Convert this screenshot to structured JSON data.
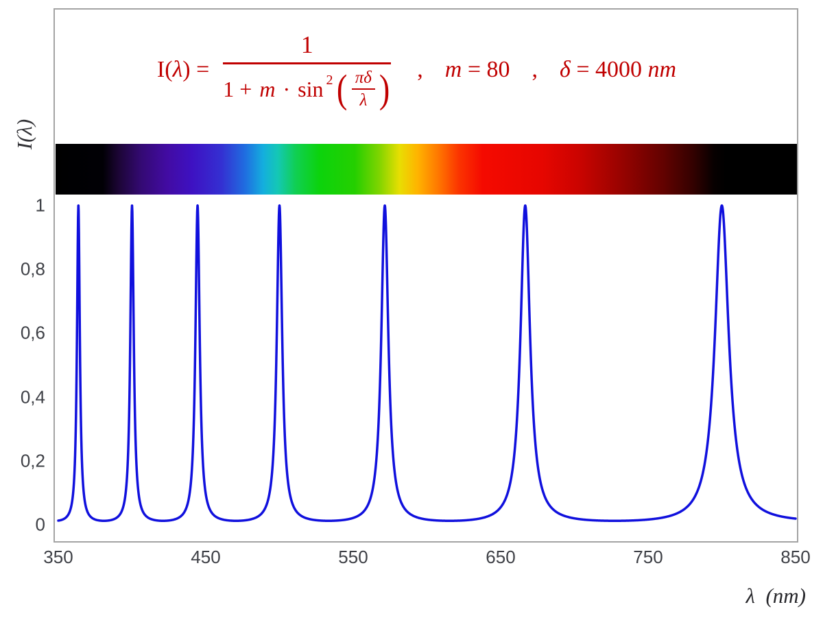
{
  "formula": {
    "lhs_pre": "I(",
    "lhs_lambda": "λ",
    "lhs_post": ") =",
    "numerator": "1",
    "den_one_plus": "1 + ",
    "den_m": "m",
    "den_dot": " · ",
    "den_sin": "sin",
    "den_exponent": "2",
    "paren_open": "(",
    "paren_close": ")",
    "inner_numerator": "πδ",
    "inner_denominator": "λ",
    "separator_comma": ",",
    "m_var": "m",
    "m_equals": " = ",
    "m_value": "80",
    "delta_var": "δ",
    "delta_equals": " = ",
    "delta_value": "4000 ",
    "delta_unit": "nm",
    "color": "#c00000"
  },
  "axes": {
    "y_title": "I(λ)",
    "x_title": "λ  (nm)",
    "y_tick_labels": [
      "1",
      "0,8",
      "0,6",
      "0,4",
      "0,2",
      "0"
    ],
    "x_tick_labels": [
      "350",
      "450",
      "550",
      "650",
      "750",
      "850"
    ]
  },
  "chart_data": {
    "type": "line",
    "title": "I(λ) = 1 / (1 + m·sin²(πδ/λ)) ,  m = 80 ,  δ = 4000 nm",
    "xlabel": "λ (nm)",
    "ylabel": "I(λ)",
    "x_range_nm": [
      350,
      850
    ],
    "ylim": [
      0,
      1
    ],
    "x_tick_values": [
      350,
      450,
      550,
      650,
      750,
      850
    ],
    "y_tick_values": [
      0,
      0.2,
      0.4,
      0.6,
      0.8,
      1
    ],
    "parameters": {
      "m": 80,
      "delta_nm": 4000
    },
    "peak_wavelengths_nm": [
      363.64,
      400,
      444.44,
      500,
      571.43,
      666.67,
      800
    ],
    "peak_value": 1,
    "min_value_between_peaks": 0.012,
    "line_color": "#1010dd",
    "line_width": 3.5,
    "grid": false,
    "legend": "none",
    "samples_per_nm": 5
  },
  "spectrum_bar": {
    "stops": [
      {
        "nm": 350,
        "color": "#000000"
      },
      {
        "nm": 382,
        "color": "#010005"
      },
      {
        "nm": 392,
        "color": "#1b0533"
      },
      {
        "nm": 408,
        "color": "#340a74"
      },
      {
        "nm": 425,
        "color": "#420ba2"
      },
      {
        "nm": 442,
        "color": "#3e11c2"
      },
      {
        "nm": 462,
        "color": "#3430d2"
      },
      {
        "nm": 478,
        "color": "#1f6ee0"
      },
      {
        "nm": 490,
        "color": "#14aede"
      },
      {
        "nm": 500,
        "color": "#14c8b4"
      },
      {
        "nm": 512,
        "color": "#10cf52"
      },
      {
        "nm": 528,
        "color": "#0cd30c"
      },
      {
        "nm": 552,
        "color": "#25cf00"
      },
      {
        "nm": 568,
        "color": "#7ed400"
      },
      {
        "nm": 582,
        "color": "#e8de02"
      },
      {
        "nm": 594,
        "color": "#ffb400"
      },
      {
        "nm": 608,
        "color": "#ff7800"
      },
      {
        "nm": 622,
        "color": "#fb3400"
      },
      {
        "nm": 638,
        "color": "#f50a00"
      },
      {
        "nm": 678,
        "color": "#e60600"
      },
      {
        "nm": 702,
        "color": "#cc0400"
      },
      {
        "nm": 732,
        "color": "#970300"
      },
      {
        "nm": 760,
        "color": "#620200"
      },
      {
        "nm": 780,
        "color": "#330100"
      },
      {
        "nm": 794,
        "color": "#070000"
      },
      {
        "nm": 802,
        "color": "#000000"
      },
      {
        "nm": 850,
        "color": "#000000"
      }
    ]
  }
}
